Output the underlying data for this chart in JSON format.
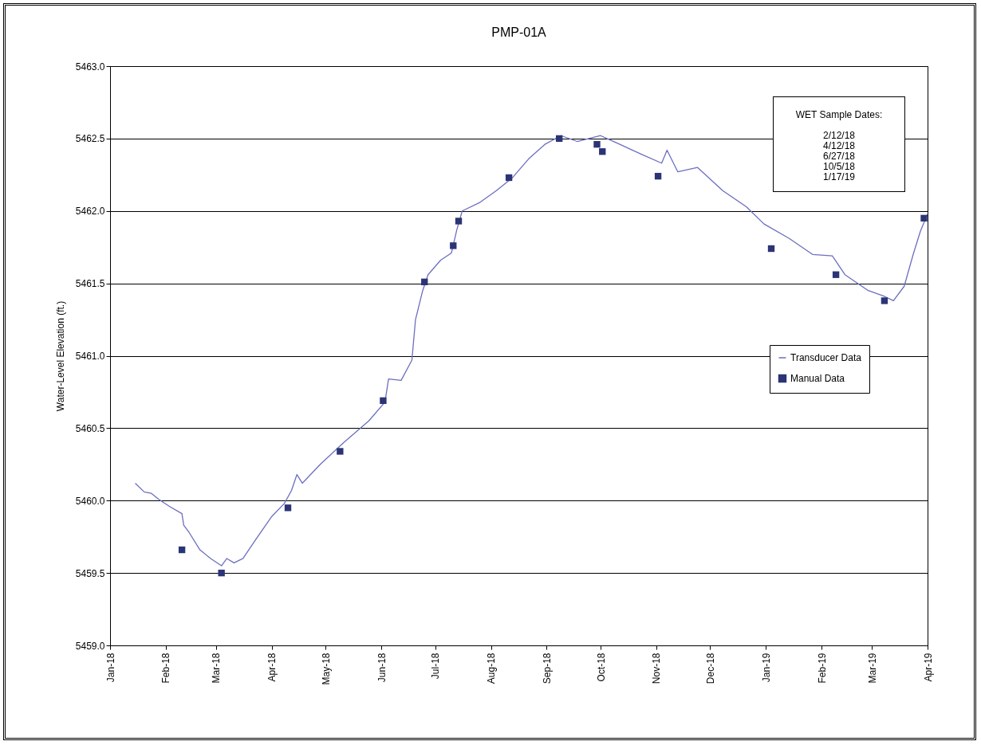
{
  "chart_data": {
    "type": "line",
    "title": "PMP-01A",
    "ylabel": "Water-Level Elevation (ft.)",
    "xlim": [
      "2018-01-01",
      "2019-04-01"
    ],
    "xticks": [
      {
        "value": "2018-01-01",
        "label": "Jan-18"
      },
      {
        "value": "2018-02-01",
        "label": "Feb-18"
      },
      {
        "value": "2018-03-01",
        "label": "Mar-18"
      },
      {
        "value": "2018-04-01",
        "label": "Apr-18"
      },
      {
        "value": "2018-05-01",
        "label": "May-18"
      },
      {
        "value": "2018-06-01",
        "label": "Jun-18"
      },
      {
        "value": "2018-07-01",
        "label": "Jul-18"
      },
      {
        "value": "2018-08-01",
        "label": "Aug-18"
      },
      {
        "value": "2018-09-01",
        "label": "Sep-18"
      },
      {
        "value": "2018-10-01",
        "label": "Oct-18"
      },
      {
        "value": "2018-11-01",
        "label": "Nov-18"
      },
      {
        "value": "2018-12-01",
        "label": "Dec-18"
      },
      {
        "value": "2019-01-01",
        "label": "Jan-19"
      },
      {
        "value": "2019-02-01",
        "label": "Feb-19"
      },
      {
        "value": "2019-03-01",
        "label": "Mar-19"
      },
      {
        "value": "2019-04-01",
        "label": "Apr-19"
      }
    ],
    "ylim": [
      5459,
      5463
    ],
    "yticks": [
      {
        "value": 5459,
        "label": "5459.0"
      },
      {
        "value": 5459.5,
        "label": "5459.5"
      },
      {
        "value": 5460,
        "label": "5460.0"
      },
      {
        "value": 5460.5,
        "label": "5460.5"
      },
      {
        "value": 5461,
        "label": "5461.0"
      },
      {
        "value": 5461.5,
        "label": "5461.5"
      },
      {
        "value": 5462,
        "label": "5462.0"
      },
      {
        "value": 5462.5,
        "label": "5462.5"
      },
      {
        "value": 5463,
        "label": "5463.0"
      }
    ],
    "grid": "y",
    "legend": "right",
    "annotations": [
      "WET Sample Dates:",
      "2/12/18",
      "4/12/18",
      "6/27/18",
      "10/5/18",
      "1/17/19"
    ],
    "series": [
      {
        "name": "Transducer Data",
        "type": "line",
        "color": "#6b6fbf",
        "line_style": "solid",
        "marker": "none",
        "x": [
          "2018-01-15",
          "2018-01-20",
          "2018-01-24",
          "2018-01-28",
          "2018-02-03",
          "2018-02-10",
          "2018-02-11",
          "2018-02-14",
          "2018-02-20",
          "2018-02-26",
          "2018-03-04",
          "2018-03-07",
          "2018-03-11",
          "2018-03-16",
          "2018-03-23",
          "2018-04-01",
          "2018-04-08",
          "2018-04-12",
          "2018-04-15",
          "2018-04-18",
          "2018-04-28",
          "2018-05-11",
          "2018-05-25",
          "2018-06-03",
          "2018-06-05",
          "2018-06-12",
          "2018-06-18",
          "2018-06-20",
          "2018-06-24",
          "2018-06-27",
          "2018-07-04",
          "2018-07-10",
          "2018-07-13",
          "2018-07-16",
          "2018-07-26",
          "2018-08-04",
          "2018-08-13",
          "2018-08-22",
          "2018-08-31",
          "2018-09-09",
          "2018-09-18",
          "2018-10-01",
          "2018-10-10",
          "2018-10-24",
          "2018-11-04",
          "2018-11-07",
          "2018-11-13",
          "2018-11-24",
          "2018-12-08",
          "2018-12-21",
          "2018-12-31",
          "2019-01-14",
          "2019-01-27",
          "2019-02-07",
          "2019-02-14",
          "2019-02-27",
          "2019-03-08",
          "2019-03-13",
          "2019-03-19",
          "2019-03-24",
          "2019-03-28",
          "2019-04-01"
        ],
        "values": [
          5460.12,
          5460.06,
          5460.05,
          5460.01,
          5459.96,
          5459.91,
          5459.83,
          5459.78,
          5459.66,
          5459.6,
          5459.55,
          5459.6,
          5459.57,
          5459.6,
          5459.73,
          5459.89,
          5459.98,
          5460.07,
          5460.18,
          5460.12,
          5460.25,
          5460.4,
          5460.55,
          5460.68,
          5460.84,
          5460.83,
          5460.97,
          5461.25,
          5461.45,
          5461.56,
          5461.66,
          5461.71,
          5461.87,
          5462.0,
          5462.06,
          5462.14,
          5462.23,
          5462.36,
          5462.46,
          5462.52,
          5462.48,
          5462.52,
          5462.47,
          5462.39,
          5462.33,
          5462.42,
          5462.27,
          5462.3,
          5462.14,
          5462.03,
          5461.91,
          5461.81,
          5461.7,
          5461.69,
          5461.56,
          5461.45,
          5461.41,
          5461.38,
          5461.48,
          5461.7,
          5461.86,
          5461.98
        ]
      },
      {
        "name": "Manual Data",
        "type": "scatter",
        "color": "#2b3475",
        "marker": "square",
        "x": [
          "2018-02-10",
          "2018-03-04",
          "2018-04-10",
          "2018-05-09",
          "2018-06-02",
          "2018-06-25",
          "2018-07-11",
          "2018-07-14",
          "2018-08-11",
          "2018-09-08",
          "2018-09-29",
          "2018-10-02",
          "2018-11-02",
          "2019-01-04",
          "2019-02-09",
          "2019-03-08",
          "2019-03-30"
        ],
        "values": [
          5459.66,
          5459.5,
          5459.95,
          5460.34,
          5460.69,
          5461.51,
          5461.76,
          5461.93,
          5462.23,
          5462.5,
          5462.46,
          5462.41,
          5462.24,
          5461.74,
          5461.56,
          5461.38,
          5461.95
        ]
      }
    ]
  }
}
